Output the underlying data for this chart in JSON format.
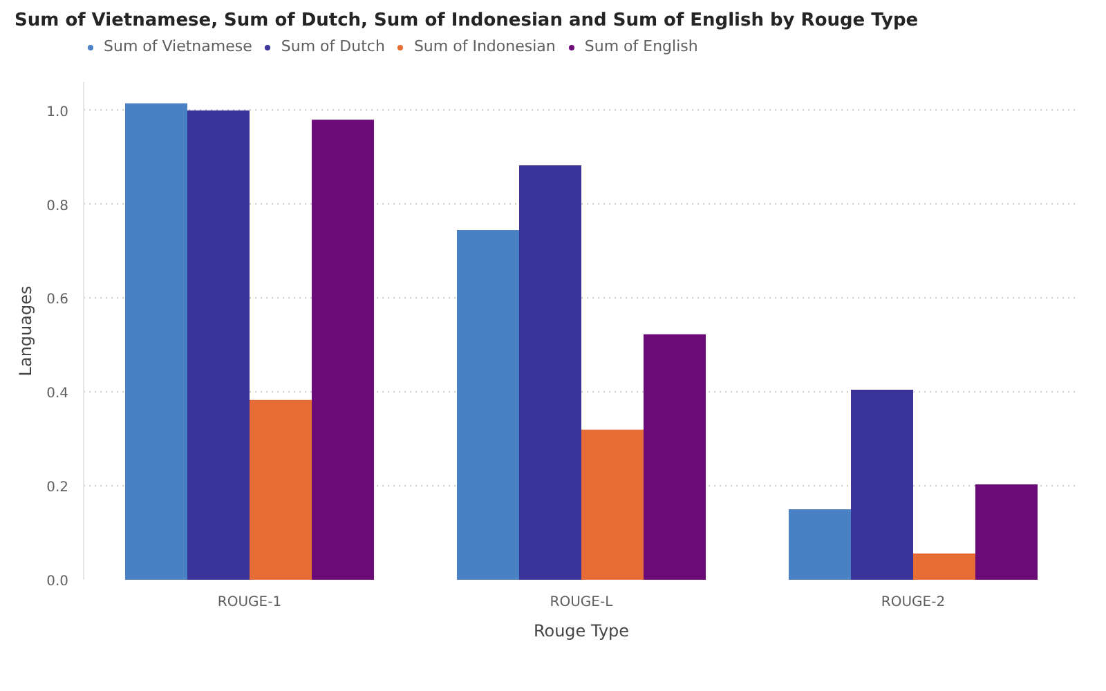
{
  "chart_data": {
    "type": "bar",
    "title": "Sum of Vietnamese, Sum of Dutch, Sum of Indonesian and Sum of English by Rouge Type",
    "xlabel": "Rouge Type",
    "ylabel": "Languages",
    "categories": [
      "ROUGE-1",
      "ROUGE-L",
      "ROUGE-2"
    ],
    "series": [
      {
        "name": "Sum of Vietnamese",
        "color": "#4a80c4",
        "values": [
          1.015,
          0.745,
          0.15
        ]
      },
      {
        "name": "Sum of Dutch",
        "color": "#3a3399",
        "values": [
          1.0,
          0.883,
          0.405
        ]
      },
      {
        "name": "Sum of Indonesian",
        "color": "#e56c35",
        "values": [
          0.383,
          0.32,
          0.056
        ]
      },
      {
        "name": "Sum of English",
        "color": "#6c0a78",
        "values": [
          0.98,
          0.523,
          0.203
        ]
      }
    ],
    "ylim": [
      0,
      1.06
    ],
    "yticks": [
      {
        "value": 0,
        "label": "0.0"
      },
      0.2,
      0.4,
      0.6,
      0.8,
      {
        "value": 1,
        "label": "1.0"
      }
    ],
    "grid": "y",
    "legend": "top left"
  }
}
